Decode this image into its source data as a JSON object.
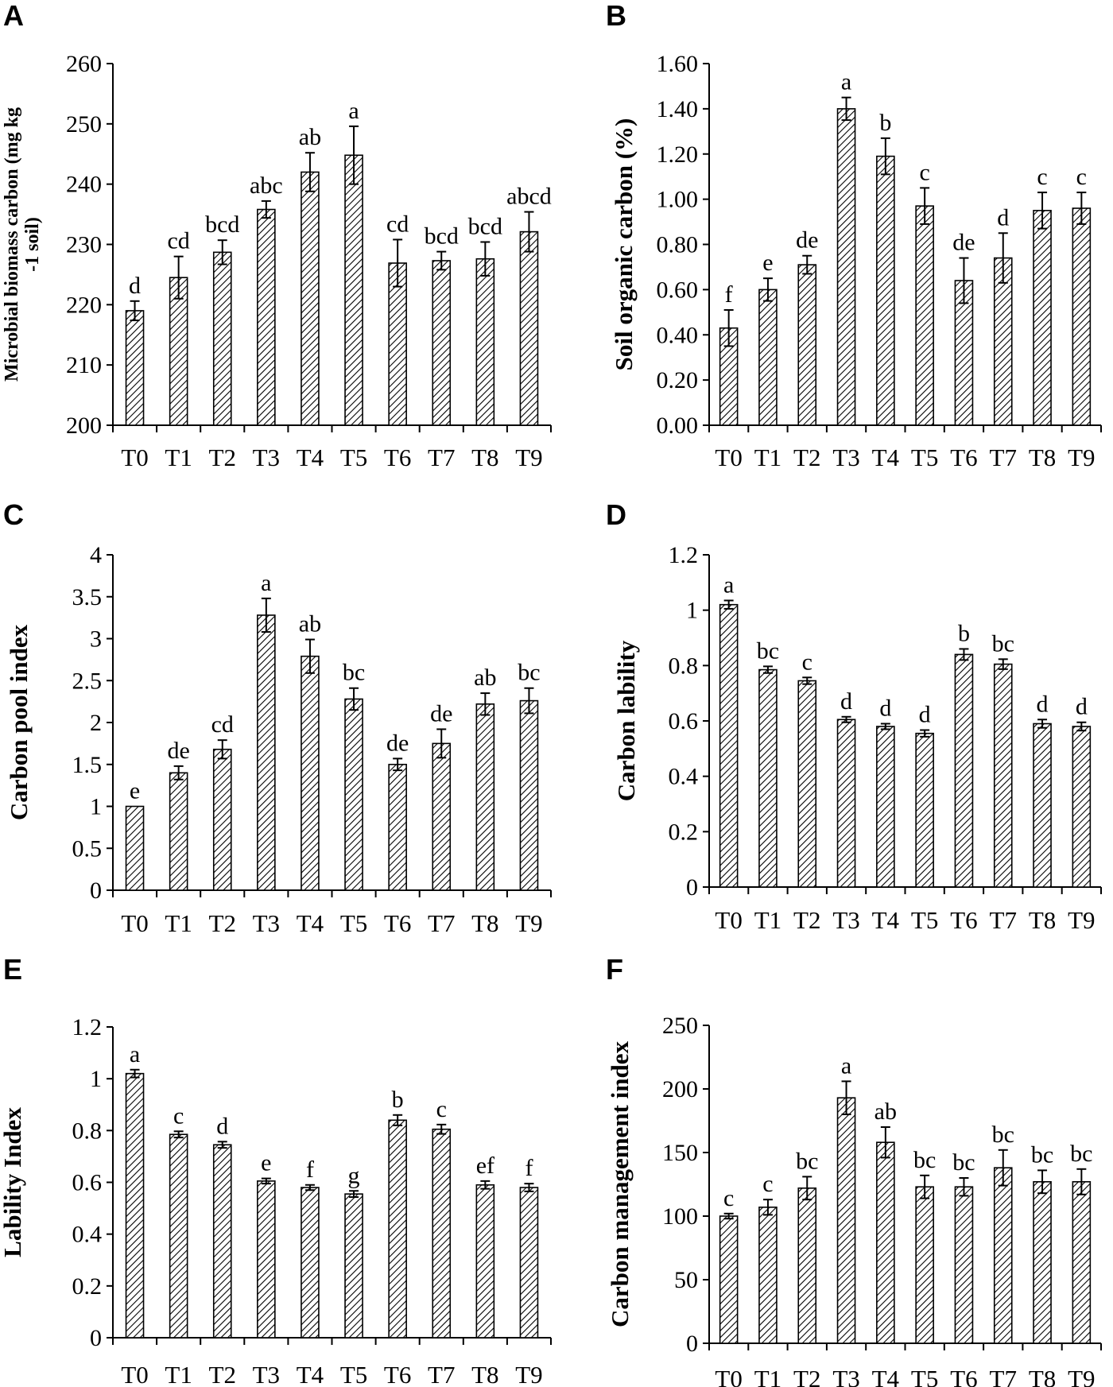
{
  "chart_data": [
    {
      "panel": "A",
      "type": "bar",
      "categories": [
        "T0",
        "T1",
        "T2",
        "T3",
        "T4",
        "T5",
        "T6",
        "T7",
        "T8",
        "T9"
      ],
      "values": [
        219.0,
        224.5,
        228.7,
        235.8,
        242.0,
        244.8,
        226.9,
        227.3,
        227.6,
        232.1
      ],
      "errors": [
        1.6,
        3.5,
        2.0,
        1.4,
        3.2,
        4.8,
        3.9,
        1.5,
        2.8,
        3.3
      ],
      "labels": [
        "d",
        "cd",
        "bcd",
        "abc",
        "ab",
        "a",
        "cd",
        "bcd",
        "bcd",
        "abcd"
      ],
      "ylabel": "Microbial biomass carbon (mg kg-1 soil)",
      "ylabel_lines": [
        "Microbial biomass carbon (mg kg",
        "-1 soil)"
      ],
      "ylim": [
        200,
        260
      ],
      "yticks": [
        "200",
        "210",
        "220",
        "230",
        "240",
        "250",
        "260"
      ]
    },
    {
      "panel": "B",
      "type": "bar",
      "categories": [
        "T0",
        "T1",
        "T2",
        "T3",
        "T4",
        "T5",
        "T6",
        "T7",
        "T8",
        "T9"
      ],
      "values": [
        0.43,
        0.6,
        0.71,
        1.4,
        1.19,
        0.97,
        0.64,
        0.74,
        0.95,
        0.96
      ],
      "errors": [
        0.08,
        0.05,
        0.04,
        0.05,
        0.08,
        0.08,
        0.1,
        0.11,
        0.08,
        0.07
      ],
      "labels": [
        "f",
        "e",
        "de",
        "a",
        "b",
        "c",
        "de",
        "d",
        "c",
        "c"
      ],
      "ylabel": "Soil organic carbon (%)",
      "ylim": [
        0,
        1.6
      ],
      "yticks": [
        "0.00",
        "0.20",
        "0.40",
        "0.60",
        "0.80",
        "1.00",
        "1.20",
        "1.40",
        "1.60"
      ]
    },
    {
      "panel": "C",
      "type": "bar",
      "categories": [
        "T0",
        "T1",
        "T2",
        "T3",
        "T4",
        "T5",
        "T6",
        "T7",
        "T8",
        "T9"
      ],
      "values": [
        1.0,
        1.4,
        1.68,
        3.28,
        2.79,
        2.28,
        1.5,
        1.75,
        2.22,
        2.26
      ],
      "errors": [
        0.0,
        0.08,
        0.11,
        0.2,
        0.2,
        0.13,
        0.07,
        0.17,
        0.13,
        0.15
      ],
      "labels": [
        "e",
        "de",
        "cd",
        "a",
        "ab",
        "bc",
        "de",
        "de",
        "ab",
        "bc"
      ],
      "ylabel": "Carbon pool index",
      "ylim": [
        0,
        4
      ],
      "yticks": [
        "0",
        "0.5",
        "1",
        "1.5",
        "2",
        "2.5",
        "3",
        "3.5",
        "4"
      ]
    },
    {
      "panel": "D",
      "type": "bar",
      "categories": [
        "T0",
        "T1",
        "T2",
        "T3",
        "T4",
        "T5",
        "T6",
        "T7",
        "T8",
        "T9"
      ],
      "values": [
        1.02,
        0.785,
        0.745,
        0.605,
        0.58,
        0.555,
        0.84,
        0.805,
        0.59,
        0.58
      ],
      "errors": [
        0.015,
        0.012,
        0.012,
        0.01,
        0.01,
        0.012,
        0.02,
        0.018,
        0.015,
        0.015
      ],
      "labels": [
        "a",
        "bc",
        "c",
        "d",
        "d",
        "d",
        "b",
        "bc",
        "d",
        "d"
      ],
      "ylabel": "Carbon lability",
      "ylim": [
        0,
        1.2
      ],
      "yticks": [
        "0",
        "0.2",
        "0.4",
        "0.6",
        "0.8",
        "1",
        "1.2"
      ]
    },
    {
      "panel": "E",
      "type": "bar",
      "categories": [
        "T0",
        "T1",
        "T2",
        "T3",
        "T4",
        "T5",
        "T6",
        "T7",
        "T8",
        "T9"
      ],
      "values": [
        1.02,
        0.785,
        0.745,
        0.605,
        0.58,
        0.555,
        0.84,
        0.805,
        0.59,
        0.58
      ],
      "errors": [
        0.015,
        0.012,
        0.012,
        0.01,
        0.01,
        0.012,
        0.02,
        0.018,
        0.015,
        0.015
      ],
      "labels": [
        "a",
        "c",
        "d",
        "e",
        "f",
        "g",
        "b",
        "c",
        "ef",
        "f"
      ],
      "ylabel": "Lability Index",
      "ylim": [
        0,
        1.2
      ],
      "yticks": [
        "0",
        "0.2",
        "0.4",
        "0.6",
        "0.8",
        "1",
        "1.2"
      ]
    },
    {
      "panel": "F",
      "type": "bar",
      "categories": [
        "T0",
        "T1",
        "T2",
        "T3",
        "T4",
        "T5",
        "T6",
        "T7",
        "T8",
        "T9"
      ],
      "values": [
        100,
        107,
        122,
        193,
        158,
        123,
        123,
        138,
        127,
        127
      ],
      "errors": [
        2,
        6,
        9,
        13,
        12,
        9,
        7,
        14,
        9,
        10
      ],
      "labels": [
        "c",
        "c",
        "bc",
        "a",
        "ab",
        "bc",
        "bc",
        "bc",
        "bc",
        "bc"
      ],
      "ylabel": "Carbon management index",
      "ylim": [
        0,
        250
      ],
      "yticks": [
        "0",
        "50",
        "100",
        "150",
        "200",
        "250"
      ]
    }
  ]
}
